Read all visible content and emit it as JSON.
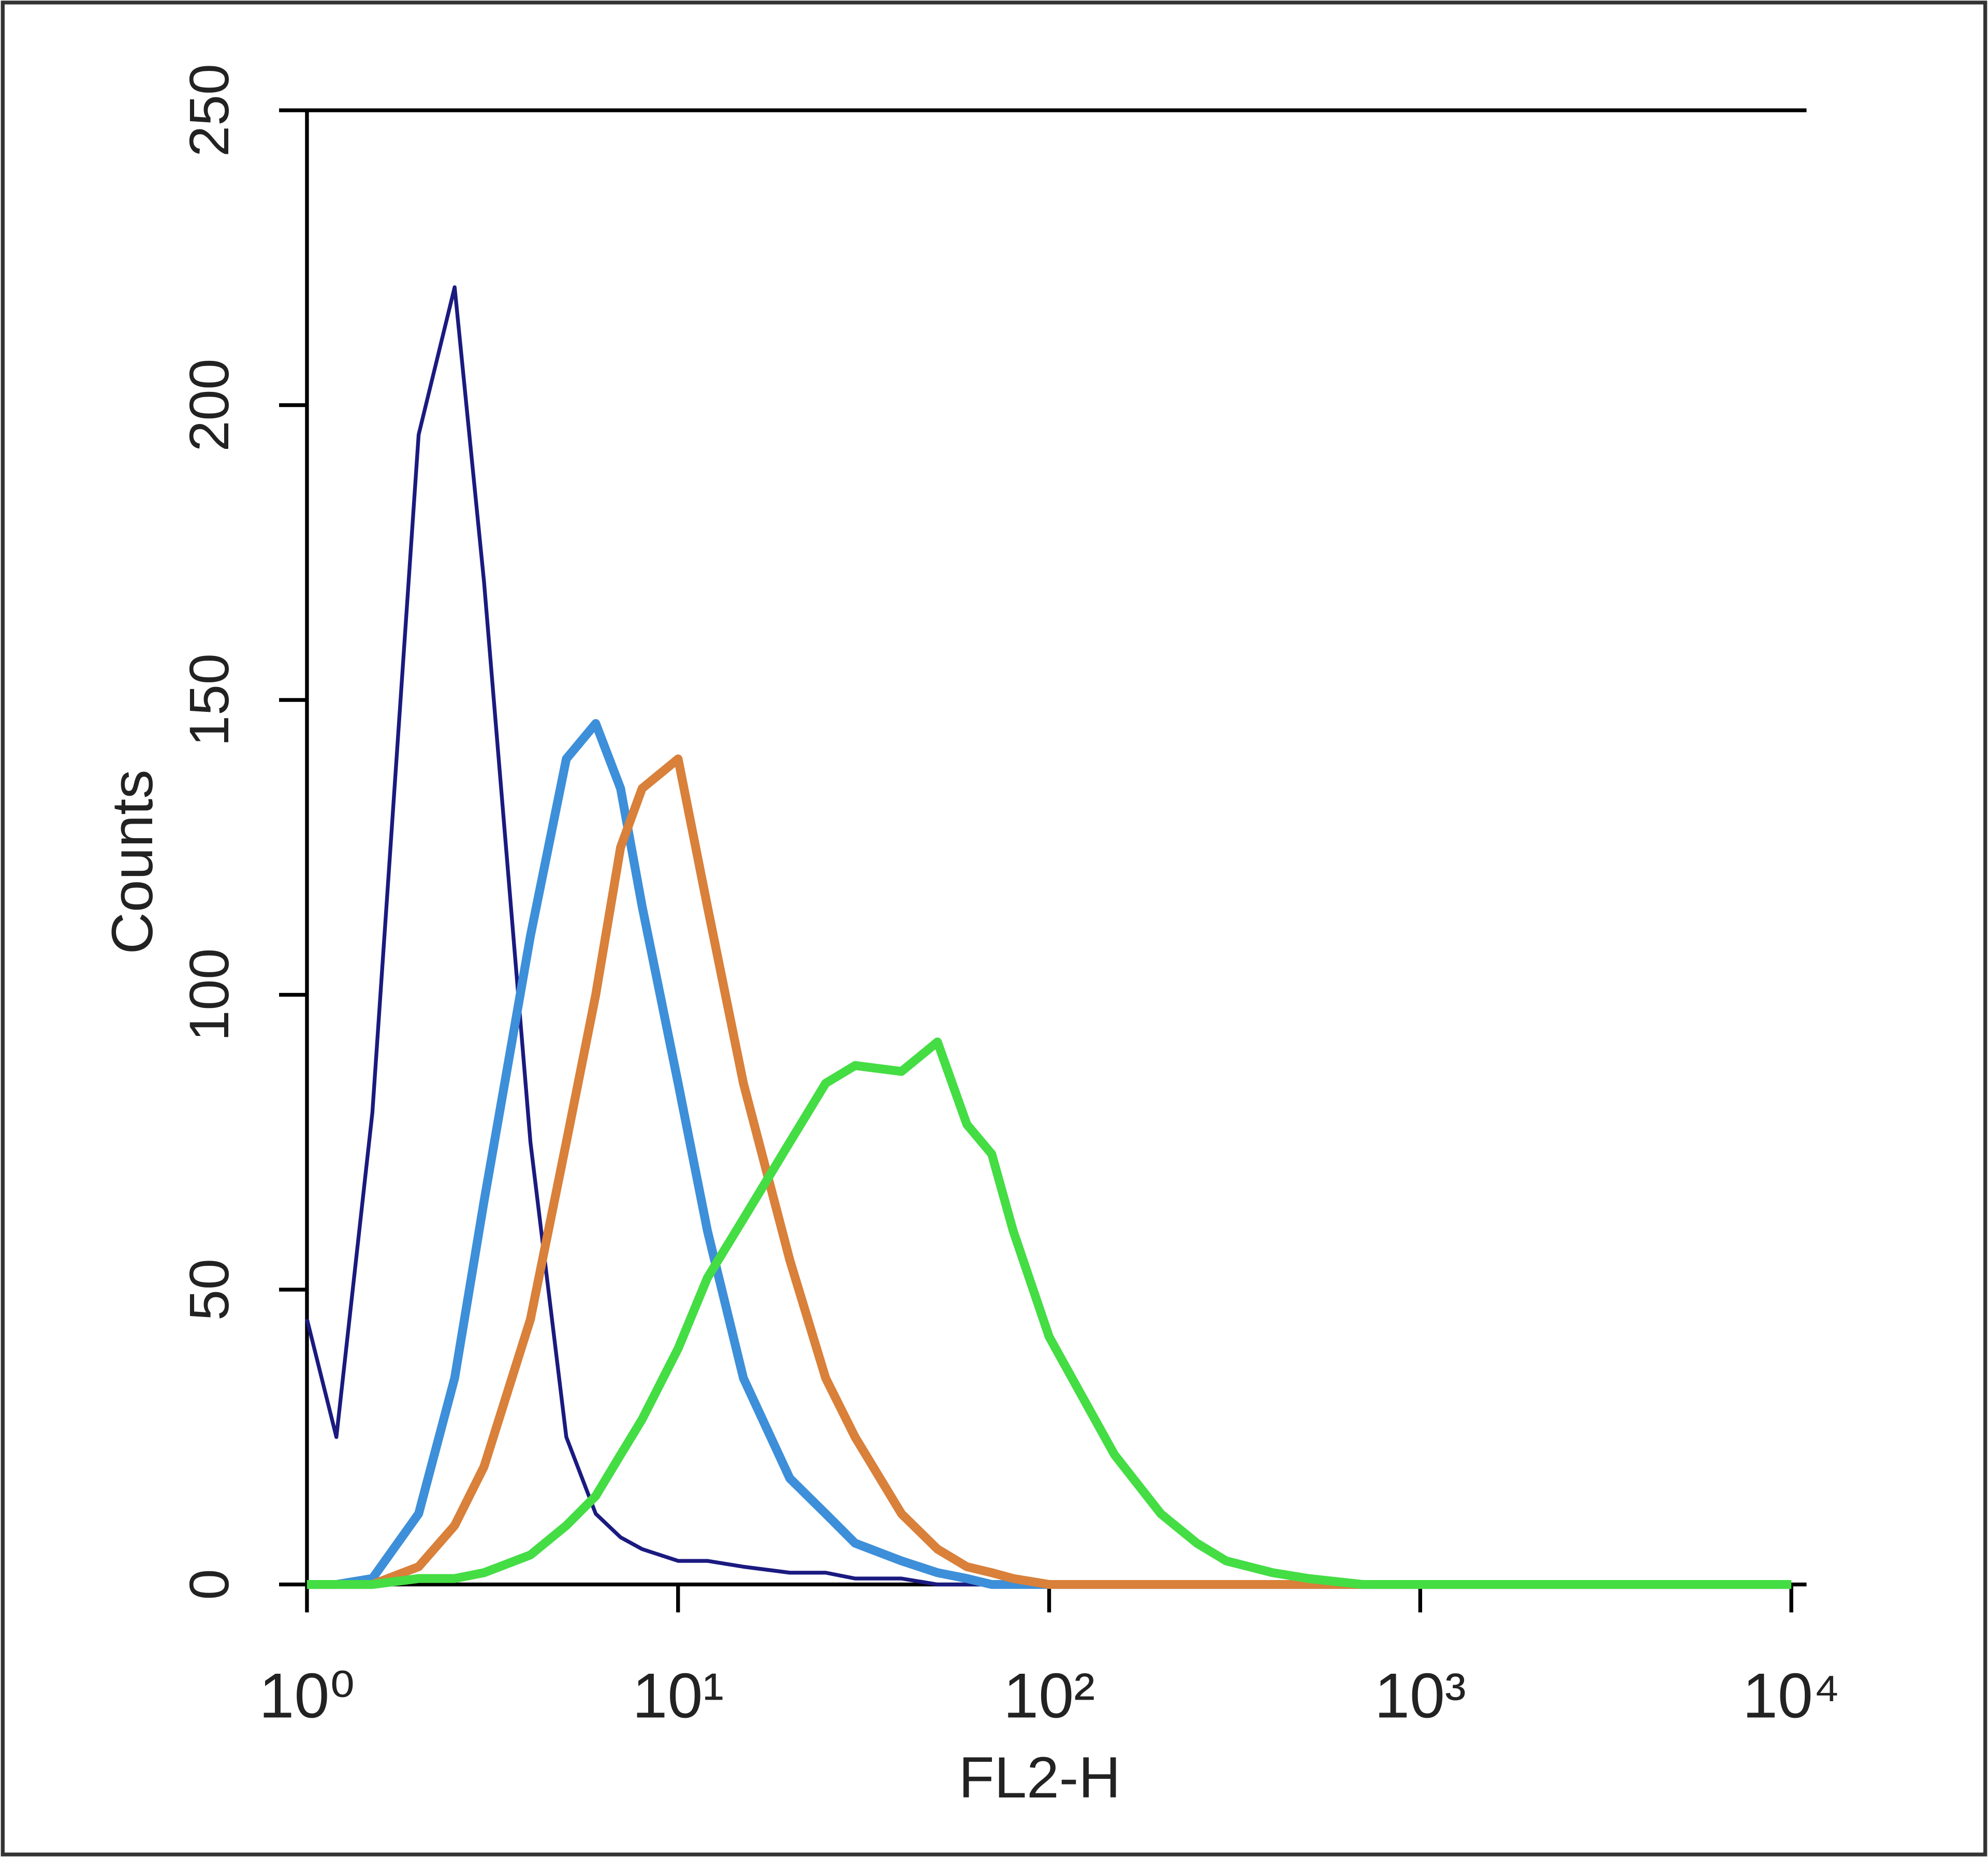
{
  "chart_data": {
    "type": "line",
    "xlabel": "FL2-H",
    "ylabel": "Counts",
    "xscale": "log",
    "xlim": [
      1,
      10000
    ],
    "ylim": [
      0,
      250
    ],
    "xticks": [
      {
        "value": 1,
        "label": "10⁰"
      },
      {
        "value": 10,
        "label": "10¹"
      },
      {
        "value": 100,
        "label": "10²"
      },
      {
        "value": 1000,
        "label": "10³"
      },
      {
        "value": 10000,
        "label": "10⁴"
      }
    ],
    "yticks": [
      0,
      50,
      100,
      150,
      200,
      250
    ],
    "x": [
      1,
      1.2,
      1.5,
      2,
      2.5,
      3,
      4,
      5,
      6,
      7,
      8,
      10,
      12,
      15,
      20,
      25,
      30,
      40,
      50,
      60,
      70,
      80,
      100,
      120,
      150,
      200,
      250,
      300,
      400,
      500,
      700,
      1000,
      2000,
      5000,
      10000
    ],
    "series": [
      {
        "color": "#1a1a80",
        "values": [
          45,
          25,
          80,
          195,
          220,
          170,
          75,
          25,
          12,
          8,
          6,
          4,
          4,
          3,
          2,
          2,
          1,
          1,
          0,
          0,
          0,
          0,
          0,
          0,
          0,
          0,
          0,
          0,
          0,
          0,
          0,
          0,
          0,
          0,
          0
        ]
      },
      {
        "color": "#3d8fd9",
        "values": [
          0,
          0,
          1,
          12,
          35,
          65,
          110,
          140,
          146,
          135,
          115,
          85,
          60,
          35,
          18,
          12,
          7,
          4,
          2,
          1,
          0,
          0,
          0,
          0,
          0,
          0,
          0,
          0,
          0,
          0,
          0,
          0,
          0,
          0,
          0
        ]
      },
      {
        "color": "#d9803a",
        "values": [
          0,
          0,
          0,
          3,
          10,
          20,
          45,
          75,
          100,
          125,
          135,
          140,
          115,
          85,
          55,
          35,
          25,
          12,
          6,
          3,
          2,
          1,
          0,
          0,
          0,
          0,
          0,
          0,
          0,
          0,
          0,
          0,
          0,
          0,
          0
        ]
      },
      {
        "color": "#44dd44",
        "values": [
          0,
          0,
          0,
          1,
          1,
          2,
          5,
          10,
          15,
          22,
          28,
          40,
          52,
          62,
          75,
          85,
          88,
          87,
          92,
          78,
          73,
          60,
          42,
          33,
          22,
          12,
          7,
          4,
          2,
          1,
          0,
          0,
          0,
          0,
          0
        ]
      }
    ]
  }
}
